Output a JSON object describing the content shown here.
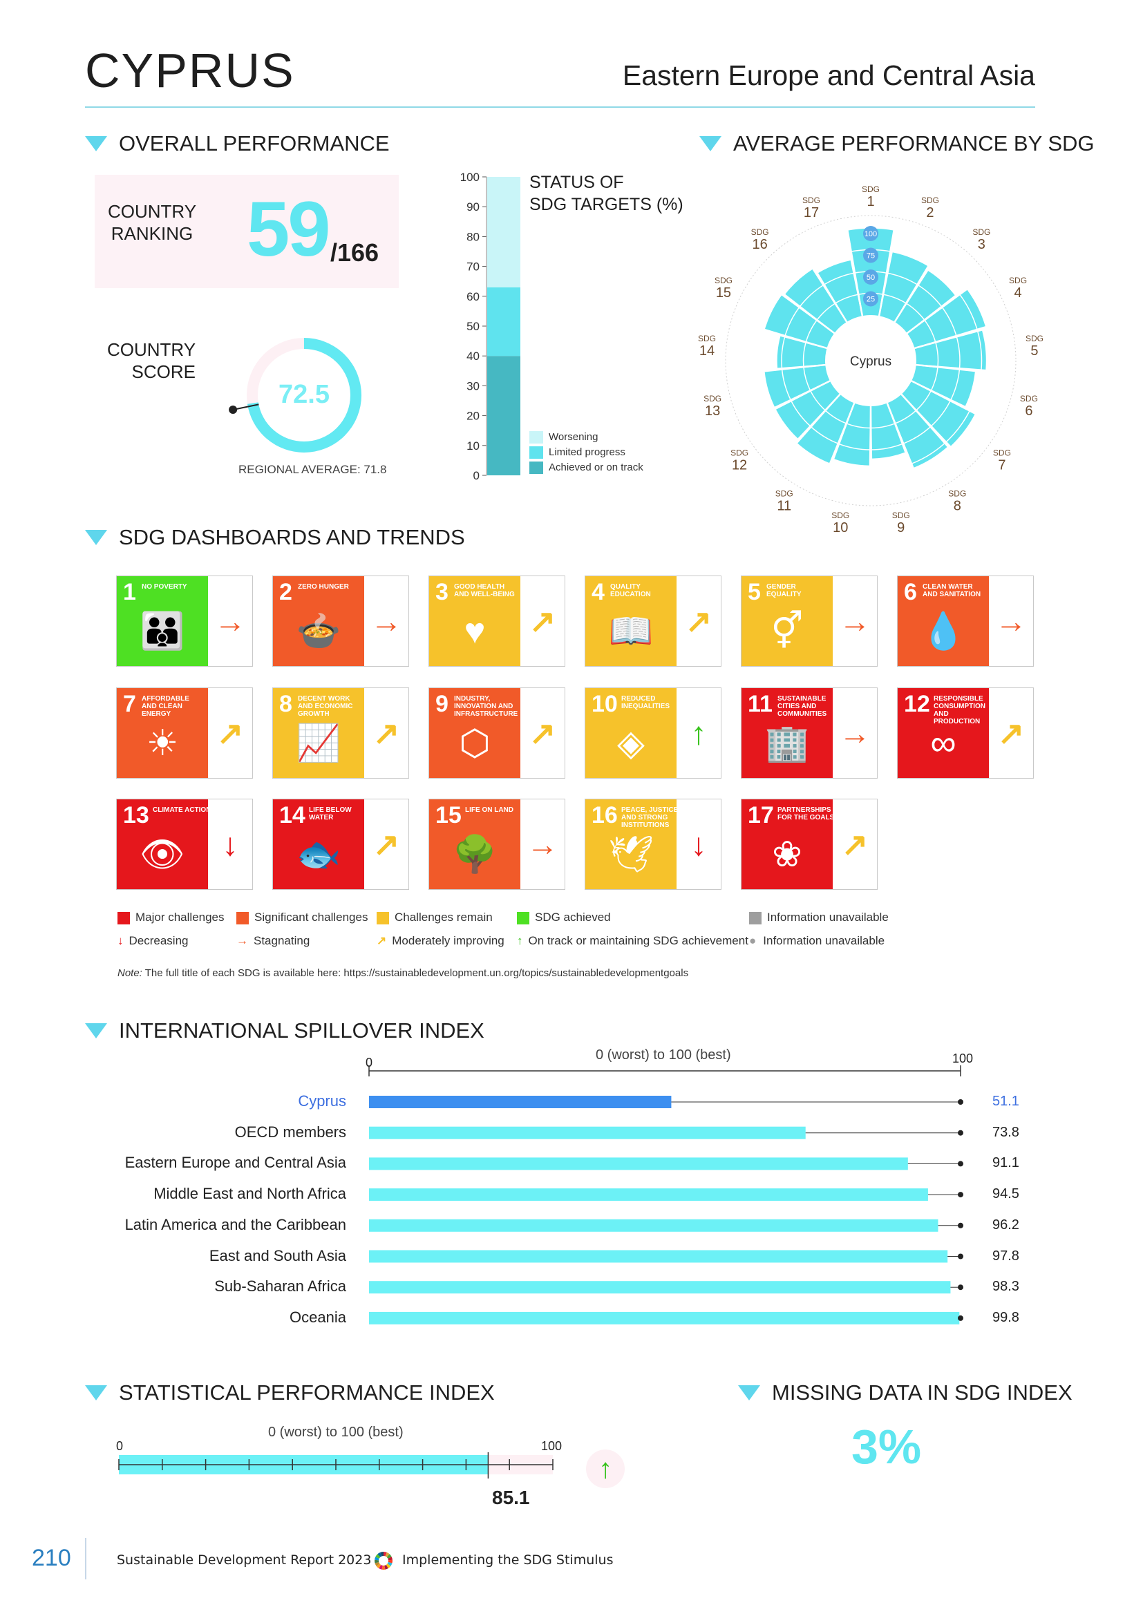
{
  "header": {
    "country": "CYPRUS",
    "region": "Eastern Europe and Central Asia"
  },
  "sections": {
    "overall": "OVERALL PERFORMANCE",
    "average": "AVERAGE PERFORMANCE BY SDG",
    "dashboards": "SDG DASHBOARDS AND TRENDS",
    "spillover": "INTERNATIONAL SPILLOVER INDEX",
    "statistical": "STATISTICAL PERFORMANCE INDEX",
    "missing": "MISSING DATA IN SDG INDEX"
  },
  "ranking": {
    "label_line1": "COUNTRY",
    "label_line2": "RANKING",
    "rank": "59",
    "total": "/166"
  },
  "score": {
    "label_line1": "COUNTRY",
    "label_line2": "SCORE",
    "value": "72.5",
    "value_num": 72.5,
    "regional": "REGIONAL AVERAGE: 71.8",
    "regional_num": 71.8
  },
  "status_chart": {
    "title_line1": "STATUS OF",
    "title_line2": "SDG TARGETS (%)",
    "ticks": [
      "0",
      "10",
      "20",
      "30",
      "40",
      "50",
      "60",
      "70",
      "80",
      "90",
      "100"
    ],
    "achieved": 40,
    "limited": 23,
    "worsening": 37,
    "legend": [
      "Worsening",
      "Limited progress",
      "Achieved or on track"
    ],
    "colors": {
      "worsening": "#c9f5f8",
      "limited": "#5fe3ee",
      "achieved": "#46b8c2"
    }
  },
  "radar": {
    "center_label": "Cyprus",
    "sdg_prefix": "SDG",
    "ring_labels": [
      "100",
      "75",
      "50",
      "25"
    ],
    "values": [
      100,
      75,
      70,
      85,
      80,
      68,
      82,
      80,
      60,
      68,
      75,
      70,
      70,
      55,
      75,
      72,
      65
    ],
    "color": "#5fe3ee"
  },
  "dashboard": {
    "tiles": [
      {
        "n": "1",
        "title": "NO POVERTY",
        "color": "#4ee023",
        "glyph": "👪",
        "trend": "→",
        "trend_color": "#f15a29"
      },
      {
        "n": "2",
        "title": "ZERO HUNGER",
        "color": "#f15a29",
        "glyph": "🍲",
        "trend": "→",
        "trend_color": "#f15a29"
      },
      {
        "n": "3",
        "title": "GOOD HEALTH AND WELL-BEING",
        "color": "#f6c22b",
        "glyph": "♥",
        "trend": "↗",
        "trend_color": "#f6c22b"
      },
      {
        "n": "4",
        "title": "QUALITY EDUCATION",
        "color": "#f6c22b",
        "glyph": "📖",
        "trend": "↗",
        "trend_color": "#f6c22b"
      },
      {
        "n": "5",
        "title": "GENDER EQUALITY",
        "color": "#f6c22b",
        "glyph": "⚥",
        "trend": "→",
        "trend_color": "#f15a29"
      },
      {
        "n": "6",
        "title": "CLEAN WATER AND SANITATION",
        "color": "#f15a29",
        "glyph": "💧",
        "trend": "→",
        "trend_color": "#f15a29"
      },
      {
        "n": "7",
        "title": "AFFORDABLE AND CLEAN ENERGY",
        "color": "#f15a29",
        "glyph": "☀",
        "trend": "↗",
        "trend_color": "#f6c22b"
      },
      {
        "n": "8",
        "title": "DECENT WORK AND ECONOMIC GROWTH",
        "color": "#f6c22b",
        "glyph": "📈",
        "trend": "↗",
        "trend_color": "#f6c22b"
      },
      {
        "n": "9",
        "title": "INDUSTRY, INNOVATION AND INFRASTRUCTURE",
        "color": "#f15a29",
        "glyph": "⬡",
        "trend": "↗",
        "trend_color": "#f6c22b"
      },
      {
        "n": "10",
        "title": "REDUCED INEQUALITIES",
        "color": "#f6c22b",
        "glyph": "◈",
        "trend": "↑",
        "trend_color": "#36c21a"
      },
      {
        "n": "11",
        "title": "SUSTAINABLE CITIES AND COMMUNITIES",
        "color": "#e5171c",
        "glyph": "🏢",
        "trend": "→",
        "trend_color": "#f15a29"
      },
      {
        "n": "12",
        "title": "RESPONSIBLE CONSUMPTION AND PRODUCTION",
        "color": "#e5171c",
        "glyph": "∞",
        "trend": "↗",
        "trend_color": "#f6c22b"
      },
      {
        "n": "13",
        "title": "CLIMATE ACTION",
        "color": "#e5171c",
        "glyph": "👁",
        "trend": "↓",
        "trend_color": "#e5171c"
      },
      {
        "n": "14",
        "title": "LIFE BELOW WATER",
        "color": "#e5171c",
        "glyph": "🐟",
        "trend": "↗",
        "trend_color": "#f6c22b"
      },
      {
        "n": "15",
        "title": "LIFE ON LAND",
        "color": "#f15a29",
        "glyph": "🌳",
        "trend": "→",
        "trend_color": "#f15a29"
      },
      {
        "n": "16",
        "title": "PEACE, JUSTICE AND STRONG INSTITUTIONS",
        "color": "#f6c22b",
        "glyph": "🕊",
        "trend": "↓",
        "trend_color": "#e5171c"
      },
      {
        "n": "17",
        "title": "PARTNERSHIPS FOR THE GOALS",
        "color": "#e5171c",
        "glyph": "❀",
        "trend": "↗",
        "trend_color": "#f6c22b"
      }
    ],
    "legend": {
      "major": "Major challenges",
      "significant": "Significant challenges",
      "remain": "Challenges remain",
      "achieved": "SDG achieved",
      "unavailable_sq": "Information unavailable",
      "decreasing": "Decreasing",
      "stagnating": "Stagnating",
      "moderate": "Moderately improving",
      "ontrack": "On track or maintaining SDG achievement",
      "unavailable_dot": "Information unavailable"
    },
    "note_prefix": "Note:",
    "note": "The full title of each SDG is available here: https://sustainabledevelopment.un.org/topics/sustainabledevelopmentgoals"
  },
  "spillover": {
    "axis_min": "0",
    "axis_max": "100",
    "axis_label": "0 (worst) to 100 (best)",
    "rows": [
      {
        "label": "Cyprus",
        "value": 51.1,
        "value_text": "51.1",
        "highlight": true
      },
      {
        "label": "OECD members",
        "value": 73.8,
        "value_text": "73.8",
        "highlight": false
      },
      {
        "label": "Eastern Europe and Central Asia",
        "value": 91.1,
        "value_text": "91.1",
        "highlight": false
      },
      {
        "label": "Middle East and North Africa",
        "value": 94.5,
        "value_text": "94.5",
        "highlight": false
      },
      {
        "label": "Latin America and the Caribbean",
        "value": 96.2,
        "value_text": "96.2",
        "highlight": false
      },
      {
        "label": "East and South Asia",
        "value": 97.8,
        "value_text": "97.8",
        "highlight": false
      },
      {
        "label": "Sub-Saharan Africa",
        "value": 98.3,
        "value_text": "98.3",
        "highlight": false
      },
      {
        "label": "Oceania",
        "value": 99.8,
        "value_text": "99.8",
        "highlight": false
      }
    ]
  },
  "statistical": {
    "axis_min": "0",
    "axis_max": "100",
    "axis_label": "0 (worst) to 100 (best)",
    "value": 85.1,
    "value_text": "85.1",
    "trend": "↑"
  },
  "missing": {
    "value": "3%"
  },
  "footer": {
    "page": "210",
    "report": "Sustainable Development Report 2023",
    "subtitle": "Implementing the SDG Stimulus"
  }
}
